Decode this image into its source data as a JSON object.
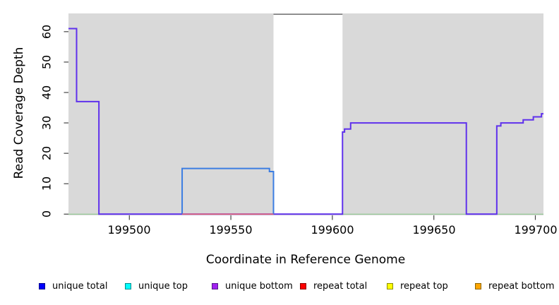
{
  "figure": {
    "xlabel": "Coordinate in Reference Genome",
    "ylabel": "Read Coverage Depth"
  },
  "chart_data": {
    "type": "line",
    "subtype": "step-coverage-plot",
    "title": "",
    "xlabel": "Coordinate in Reference Genome",
    "ylabel": "Read Coverage Depth",
    "xlim": [
      199470,
      199704
    ],
    "ylim": [
      0,
      66
    ],
    "grid": false,
    "plot_bg": "#d9d9d9",
    "tick_color": "#444444",
    "x_ticks": [
      {
        "value": 199500,
        "label": "199500"
      },
      {
        "value": 199550,
        "label": "199550"
      },
      {
        "value": 199600,
        "label": "199600"
      },
      {
        "value": 199650,
        "label": "199650"
      },
      {
        "value": 199700,
        "label": "199700"
      }
    ],
    "y_ticks": [
      {
        "value": 0,
        "label": "0"
      },
      {
        "value": 10,
        "label": "10"
      },
      {
        "value": 20,
        "label": "20"
      },
      {
        "value": 30,
        "label": "30"
      },
      {
        "value": 40,
        "label": "40"
      },
      {
        "value": 50,
        "label": "50"
      },
      {
        "value": 60,
        "label": "60"
      }
    ],
    "offscale_mask": {
      "x0": 199571,
      "x1": 199605,
      "fill": "#ffffff",
      "top_line_color": "#787878"
    },
    "series": [
      {
        "name": "baseline",
        "color": "#8ec98e",
        "width": 1.2,
        "points": [
          [
            199470,
            0
          ],
          [
            199704,
            0
          ]
        ]
      },
      {
        "name": "unique bottom coverage",
        "color": "#5f31ec",
        "width": 2,
        "points": [
          [
            199470,
            61
          ],
          [
            199474,
            61
          ],
          [
            199474,
            37
          ],
          [
            199485,
            37
          ],
          [
            199485,
            0
          ],
          [
            199605,
            0
          ],
          [
            199605,
            27
          ],
          [
            199606,
            27
          ],
          [
            199606,
            28
          ],
          [
            199609,
            28
          ],
          [
            199609,
            30
          ],
          [
            199666,
            30
          ],
          [
            199666,
            0
          ],
          [
            199681,
            0
          ],
          [
            199681,
            29
          ],
          [
            199683,
            29
          ],
          [
            199683,
            30
          ],
          [
            199694,
            30
          ],
          [
            199694,
            31
          ],
          [
            199699,
            31
          ],
          [
            199699,
            32
          ],
          [
            199703,
            32
          ],
          [
            199703,
            33
          ],
          [
            199704,
            33
          ]
        ]
      },
      {
        "name": "unique total coverage",
        "color": "#3b7de2",
        "width": 2,
        "points": [
          [
            199526,
            0
          ],
          [
            199526,
            15
          ],
          [
            199569,
            15
          ],
          [
            199569,
            14
          ],
          [
            199571,
            14
          ],
          [
            199571,
            0
          ]
        ]
      },
      {
        "name": "repeat total coverage",
        "color": "#e05b76",
        "width": 1.6,
        "points": [
          [
            199526,
            0
          ],
          [
            199571,
            0
          ]
        ]
      }
    ],
    "legend_position": "bottom"
  },
  "legend": {
    "items": [
      {
        "label": "unique total",
        "color": "#0000ff",
        "border": "#00008b"
      },
      {
        "label": "unique top",
        "color": "#00ffff",
        "border": "#008b8b"
      },
      {
        "label": "unique bottom",
        "color": "#a020f0",
        "border": "#551a8b"
      },
      {
        "label": "repeat total",
        "color": "#ff0000",
        "border": "#8b0000"
      },
      {
        "label": "repeat top",
        "color": "#ffff00",
        "border": "#8b8b00"
      },
      {
        "label": "repeat bottom",
        "color": "#ffa500",
        "border": "#8b6500"
      }
    ]
  }
}
